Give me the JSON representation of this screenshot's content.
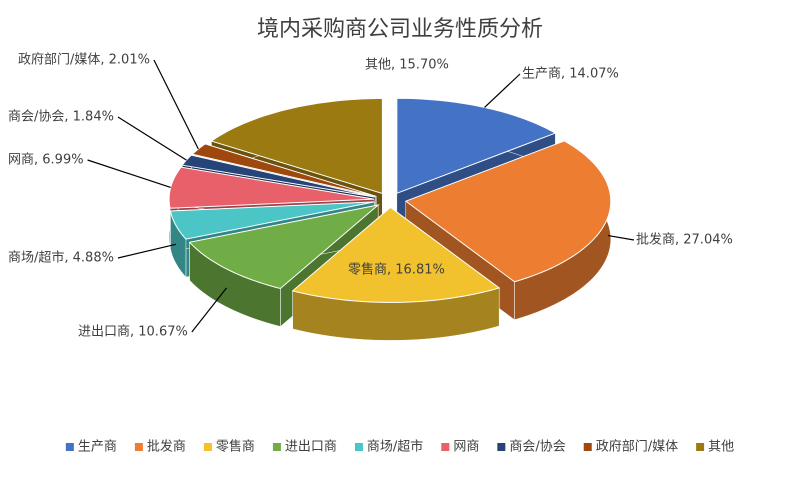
{
  "chart_data": {
    "type": "pie3d",
    "title": "境内采购商公司业务性质分析",
    "categories": [
      "生产商",
      "批发商",
      "零售商",
      "进出口商",
      "商场/超市",
      "网商",
      "商会/协会",
      "政府部门/媒体",
      "其他"
    ],
    "values": [
      14.07,
      27.04,
      16.81,
      10.67,
      4.88,
      6.99,
      1.84,
      2.01,
      15.7
    ],
    "value_labels": [
      "生产商, 14.07%",
      "批发商, 27.04%",
      "零售商, 16.81%",
      "进出口商, 10.67%",
      "商场/超市, 4.88%",
      "网商, 6.99%",
      "商会/协会, 1.84%",
      "政府部门/媒体, 2.01%",
      "其他, 15.70%"
    ],
    "colors": [
      "#4472c4",
      "#ed7d31",
      "#f2c12e",
      "#70ad47",
      "#4bc5c5",
      "#e8606a",
      "#264478",
      "#9e480e",
      "#9c7a12"
    ],
    "legend": "bottom"
  }
}
